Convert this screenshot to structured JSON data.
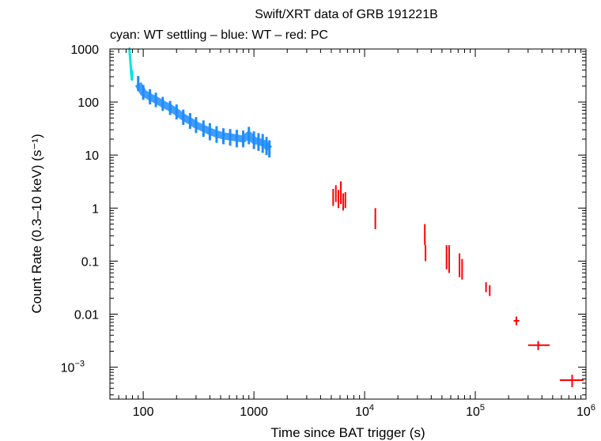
{
  "chart_data": {
    "type": "scatter",
    "title": "Swift/XRT data of GRB 191221B",
    "subtitle": "cyan: WT settling – blue: WT – red: PC",
    "xlabel": "Time since BAT trigger (s)",
    "ylabel": "Count Rate (0.3–10 keV) (s⁻¹)",
    "xscale": "log",
    "yscale": "log",
    "xlim": [
      50,
      1000000
    ],
    "ylim": [
      0.00025,
      1000
    ],
    "x_ticks": [
      {
        "value": 100,
        "label": "100",
        "exp": ""
      },
      {
        "value": 1000,
        "label": "1000",
        "exp": ""
      },
      {
        "value": 10000,
        "label": "10",
        "exp": "4"
      },
      {
        "value": 100000,
        "label": "10",
        "exp": "5"
      },
      {
        "value": 1000000,
        "label": "10",
        "exp": "6"
      }
    ],
    "y_ticks": [
      {
        "value": 1000,
        "label": "1000",
        "exp": ""
      },
      {
        "value": 100,
        "label": "100",
        "exp": ""
      },
      {
        "value": 10,
        "label": "10",
        "exp": ""
      },
      {
        "value": 1,
        "label": "1",
        "exp": ""
      },
      {
        "value": 0.1,
        "label": "0.1",
        "exp": ""
      },
      {
        "value": 0.01,
        "label": "0.01",
        "exp": ""
      },
      {
        "value": 0.001,
        "label": "10",
        "exp": "−3"
      }
    ],
    "series": [
      {
        "name": "WT settling",
        "color": "#00e5e5",
        "points": [
          {
            "x": 75,
            "y": 1000,
            "xerr": [
              74.5,
              75.5
            ],
            "yerr": [
              820,
              1080
            ]
          },
          {
            "x": 76,
            "y": 700,
            "xerr": [
              75.5,
              76.5
            ],
            "yerr": [
              600,
              820
            ]
          },
          {
            "x": 77,
            "y": 500,
            "xerr": [
              76.5,
              77.5
            ],
            "yerr": [
              420,
              600
            ]
          },
          {
            "x": 78,
            "y": 330,
            "xerr": [
              77.5,
              78.5
            ],
            "yerr": [
              260,
              420
            ]
          },
          {
            "x": 79,
            "y": 300,
            "xerr": [
              78.5,
              79.5
            ],
            "yerr": [
              250,
              370
            ]
          },
          {
            "x": 80,
            "y": 320,
            "xerr": [
              79.5,
              80.5
            ],
            "yerr": [
              260,
              400
            ]
          }
        ]
      },
      {
        "name": "WT",
        "color": "#1e8cff",
        "points": [
          {
            "x": 90,
            "y": 220,
            "yerr": [
              160,
              310
            ]
          },
          {
            "x": 100,
            "y": 150,
            "yerr": [
              110,
              210
            ]
          },
          {
            "x": 115,
            "y": 125,
            "yerr": [
              90,
              175
            ]
          },
          {
            "x": 130,
            "y": 110,
            "yerr": [
              80,
              150
            ]
          },
          {
            "x": 150,
            "y": 92,
            "yerr": [
              68,
              125
            ]
          },
          {
            "x": 175,
            "y": 78,
            "yerr": [
              57,
              105
            ]
          },
          {
            "x": 200,
            "y": 65,
            "yerr": [
              47,
              90
            ]
          },
          {
            "x": 230,
            "y": 52,
            "yerr": [
              37,
              72
            ]
          },
          {
            "x": 265,
            "y": 44,
            "yerr": [
              31,
              62
            ]
          },
          {
            "x": 300,
            "y": 37,
            "yerr": [
              26,
              52
            ]
          },
          {
            "x": 350,
            "y": 32,
            "yerr": [
              22,
              45
            ]
          },
          {
            "x": 400,
            "y": 28,
            "yerr": [
              19,
              40
            ]
          },
          {
            "x": 460,
            "y": 25,
            "yerr": [
              17,
              35
            ]
          },
          {
            "x": 530,
            "y": 23,
            "yerr": [
              16,
              32
            ]
          },
          {
            "x": 610,
            "y": 22,
            "yerr": [
              15,
              31
            ]
          },
          {
            "x": 700,
            "y": 21,
            "yerr": [
              14,
              30
            ]
          },
          {
            "x": 800,
            "y": 20,
            "yerr": [
              14,
              29
            ]
          },
          {
            "x": 900,
            "y": 24,
            "yerr": [
              16,
              34
            ]
          },
          {
            "x": 1000,
            "y": 19,
            "yerr": [
              13,
              28
            ]
          },
          {
            "x": 1100,
            "y": 18,
            "yerr": [
              12,
              26
            ]
          },
          {
            "x": 1200,
            "y": 17,
            "yerr": [
              11,
              25
            ]
          },
          {
            "x": 1300,
            "y": 15,
            "yerr": [
              10,
              22
            ]
          },
          {
            "x": 1380,
            "y": 13,
            "yerr": [
              9,
              19
            ]
          }
        ]
      },
      {
        "name": "PC",
        "color": "#ff0000",
        "points": [
          {
            "x": 5200,
            "y": 1.6,
            "yerr": [
              1.1,
              2.3
            ]
          },
          {
            "x": 5500,
            "y": 1.9,
            "yerr": [
              1.3,
              2.7
            ]
          },
          {
            "x": 5800,
            "y": 1.5,
            "yerr": [
              1.0,
              2.2
            ]
          },
          {
            "x": 6100,
            "y": 1.8,
            "yerr": [
              1.2,
              3.2
            ]
          },
          {
            "x": 6400,
            "y": 1.3,
            "yerr": [
              0.9,
              1.9
            ]
          },
          {
            "x": 6700,
            "y": 1.4,
            "yerr": [
              1.0,
              2.0
            ]
          },
          {
            "x": 12500,
            "y": 0.6,
            "yerr": [
              0.4,
              1.0
            ]
          },
          {
            "x": 35000,
            "y": 0.28,
            "yerr": [
              0.2,
              0.5
            ]
          },
          {
            "x": 35500,
            "y": 0.14,
            "yerr": [
              0.1,
              0.2
            ]
          },
          {
            "x": 55000,
            "y": 0.12,
            "yerr": [
              0.07,
              0.2
            ]
          },
          {
            "x": 58000,
            "y": 0.1,
            "yerr": [
              0.06,
              0.2
            ]
          },
          {
            "x": 72000,
            "y": 0.08,
            "yerr": [
              0.05,
              0.14
            ]
          },
          {
            "x": 76000,
            "y": 0.07,
            "yerr": [
              0.045,
              0.11
            ]
          },
          {
            "x": 125000,
            "y": 0.032,
            "yerr": [
              0.026,
              0.04
            ]
          },
          {
            "x": 135000,
            "y": 0.028,
            "yerr": [
              0.022,
              0.035
            ]
          },
          {
            "x": 235000,
            "y": 0.0075,
            "yerr": [
              0.0062,
              0.009
            ],
            "xerr": [
              222000,
              250000
            ]
          },
          {
            "x": 370000,
            "y": 0.0026,
            "yerr": [
              0.0021,
              0.0031
            ],
            "xerr": [
              300000,
              470000
            ]
          },
          {
            "x": 750000,
            "y": 0.00057,
            "yerr": [
              0.00042,
              0.00072
            ],
            "xerr": [
              580000,
              950000
            ]
          }
        ]
      }
    ]
  }
}
